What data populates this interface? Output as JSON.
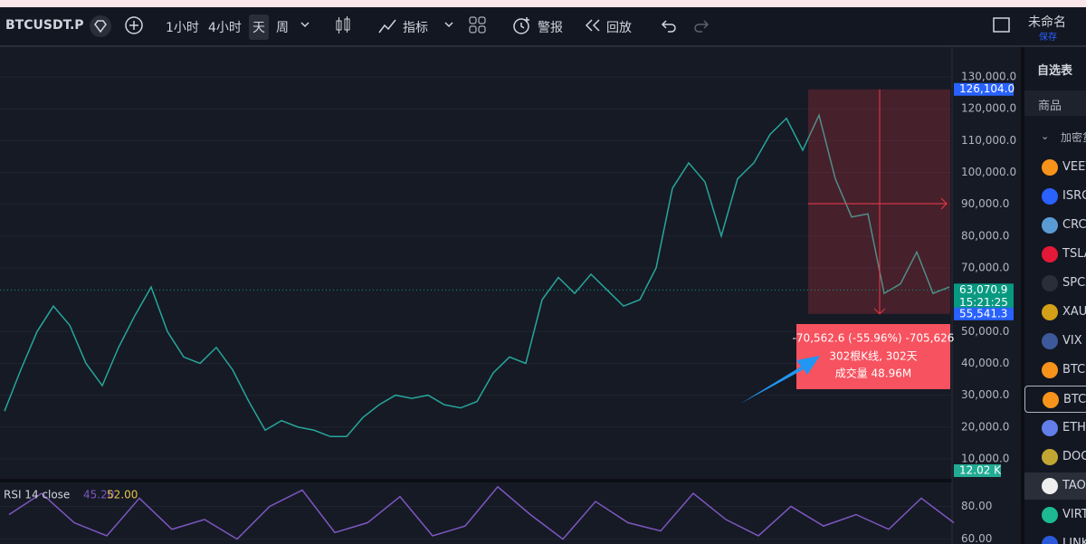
{
  "toolbar": {
    "symbol": "BTCUSDT.P",
    "intervals": [
      "1小时",
      "4小时",
      "天",
      "周"
    ],
    "indicators": "指标",
    "alert": "警报",
    "replay": "回放",
    "layout_name": "未命名",
    "save": "保存"
  },
  "chart_data": [
    {
      "type": "line",
      "color": "#26a69a",
      "values": [
        25000,
        38000,
        50000,
        58000,
        52000,
        40000,
        33000,
        45000,
        55000,
        64000,
        50000,
        42000,
        40000,
        45000,
        38000,
        28000,
        19000,
        22000,
        20000,
        19000,
        17000,
        17000,
        23000,
        27000,
        30000,
        29000,
        30000,
        27000,
        26000,
        28000,
        37000,
        42000,
        40000,
        60000,
        67000,
        62000,
        68000,
        63000,
        58000,
        60000,
        70000,
        95000,
        103000,
        97000,
        80000,
        98000,
        103000,
        112000,
        117000,
        107000,
        118000,
        98000,
        86000,
        87000,
        62000,
        65000,
        75000,
        62000,
        64000
      ],
      "ylim": [
        4000,
        139400
      ],
      "yticks": [
        {
          "value": 130000,
          "label": "130,000.0"
        },
        {
          "value": 120000,
          "label": "120,000.0"
        },
        {
          "value": 110000,
          "label": "110,000.0"
        },
        {
          "value": 100000,
          "label": "100,000.0"
        },
        {
          "value": 90000,
          "label": "90,000.0"
        },
        {
          "value": 80000,
          "label": "80,000.0"
        },
        {
          "value": 70000,
          "label": "70,000.0"
        },
        {
          "value": 50000,
          "label": "50,000.0"
        },
        {
          "value": 40000,
          "label": "40,000.0"
        },
        {
          "value": 30000,
          "label": "30,000.0"
        },
        {
          "value": 20000,
          "label": "20,000.0"
        },
        {
          "value": 10000,
          "label": "10,000.0"
        }
      ],
      "grid": true,
      "price_tags": {
        "high": {
          "value": 126104,
          "label": "126,104.0"
        },
        "last": {
          "value": 63070.9,
          "label": "63,070.9",
          "countdown": "15:21:25"
        },
        "low": {
          "value": 55541.3,
          "label": "55,541.3"
        }
      },
      "volume_tag": "12.02 K",
      "measure": {
        "change_label": "-70,562.6 (-55.96%) -705,626",
        "bars_label": "302根K线, 302天",
        "volume_label": "成交量 48.96M"
      }
    },
    {
      "type": "line",
      "color": "#7e57c2",
      "title": "RSI 14 close",
      "legend_values": [
        "45.20",
        "52.00"
      ],
      "values": [
        75,
        88,
        70,
        62,
        85,
        66,
        72,
        60,
        80,
        90,
        64,
        70,
        86,
        62,
        68,
        92,
        75,
        60,
        83,
        70,
        65,
        88,
        72,
        62,
        80,
        68,
        75,
        66,
        85,
        70
      ],
      "ylim": [
        57,
        93
      ],
      "yticks": [
        {
          "value": 80,
          "label": "80.00"
        },
        {
          "value": 60,
          "label": "60.00"
        }
      ],
      "grid": true
    }
  ],
  "watchlist": {
    "title": "自选表",
    "column": "商品",
    "group": "加密货",
    "items": [
      {
        "symbol": "VEEV",
        "color": "#f7931a"
      },
      {
        "symbol": "ISRG",
        "color": "#2962ff"
      },
      {
        "symbol": "CRCL",
        "color": "#5b9bd5"
      },
      {
        "symbol": "TSLA",
        "color": "#e31937"
      },
      {
        "symbol": "SPCX",
        "color": "#2a2e39"
      },
      {
        "symbol": "XAUU",
        "color": "#d4a017"
      },
      {
        "symbol": "VIX",
        "color": "#3c5a99"
      },
      {
        "symbol": "BTC.",
        "color": "#f7931a"
      },
      {
        "symbol": "BTCU",
        "color": "#f7931a"
      },
      {
        "symbol": "ETHU",
        "color": "#627eea"
      },
      {
        "symbol": "DOGE",
        "color": "#c2a633"
      },
      {
        "symbol": "TAOU",
        "color": "#eeeeee"
      },
      {
        "symbol": "VIRT",
        "color": "#1db992"
      },
      {
        "symbol": "LINK",
        "color": "#2a5ada"
      }
    ]
  }
}
